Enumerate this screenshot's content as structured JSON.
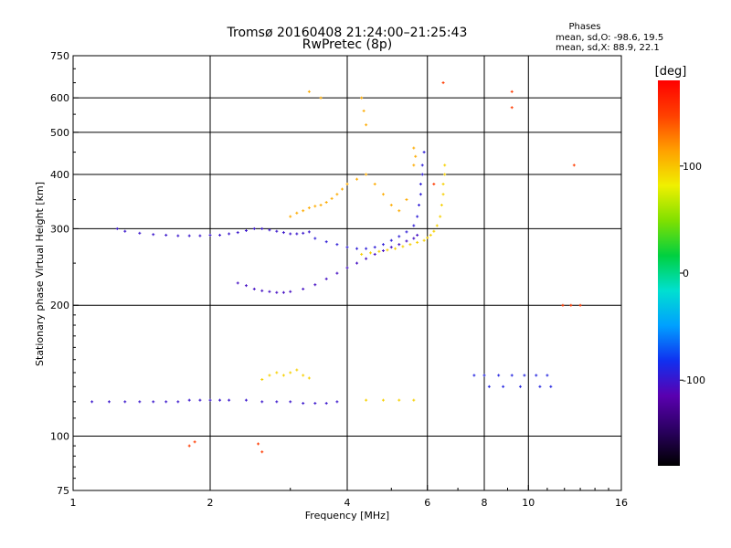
{
  "chart_data": {
    "type": "scatter",
    "title": "Tromsø 20160408 21:24:00–21:25:43",
    "subtitle": "RwPretec (8p)",
    "xlabel": "Frequency [MHz]",
    "ylabel": "Stationary phase Virtual Height [km]",
    "x_scale": "log",
    "y_scale": "log",
    "xlim": [
      1,
      16
    ],
    "ylim": [
      75,
      750
    ],
    "x_ticks": [
      1,
      2,
      4,
      6,
      8,
      10,
      16
    ],
    "y_ticks": [
      75,
      100,
      200,
      300,
      400,
      500,
      600,
      750
    ],
    "grid": true,
    "stats": {
      "heading": "Phases",
      "line_o": "mean, sd,O: -98.6, 19.5",
      "line_x": "mean, sd,X:  88.9, 22.1"
    },
    "colorbar": {
      "label": "[deg]",
      "range": [
        -180,
        180
      ],
      "ticks": [
        -100,
        0,
        100
      ],
      "colors": [
        "#000000",
        "#2a0060",
        "#5a00b0",
        "#1030f0",
        "#00a0ff",
        "#00e0d0",
        "#00d040",
        "#80e000",
        "#f0f000",
        "#ffa000",
        "#ff4000",
        "#ff0000"
      ]
    },
    "point_color_key": "phase_deg",
    "series": [
      {
        "group": "O-low F trace",
        "phase_deg": -100,
        "points": [
          [
            1.25,
            300
          ],
          [
            1.3,
            296
          ],
          [
            1.4,
            293
          ],
          [
            1.5,
            291
          ],
          [
            1.6,
            290
          ],
          [
            1.7,
            289
          ],
          [
            1.8,
            289
          ],
          [
            1.9,
            289
          ],
          [
            2.0,
            290
          ],
          [
            2.1,
            290
          ],
          [
            2.2,
            292
          ],
          [
            2.3,
            294
          ],
          [
            2.4,
            297
          ],
          [
            2.5,
            300
          ],
          [
            2.6,
            300
          ],
          [
            2.7,
            298
          ],
          [
            2.8,
            296
          ],
          [
            2.9,
            294
          ],
          [
            3.0,
            292
          ],
          [
            3.1,
            292
          ],
          [
            3.2,
            293
          ],
          [
            3.3,
            295
          ]
        ]
      },
      {
        "group": "O upper trace",
        "phase_deg": -95,
        "points": [
          [
            3.4,
            285
          ],
          [
            3.6,
            280
          ],
          [
            3.8,
            276
          ],
          [
            4.0,
            272
          ],
          [
            4.2,
            270
          ],
          [
            4.4,
            270
          ],
          [
            4.6,
            272
          ],
          [
            4.8,
            276
          ],
          [
            5.0,
            282
          ],
          [
            5.2,
            288
          ],
          [
            5.4,
            295
          ],
          [
            5.6,
            305
          ],
          [
            5.7,
            320
          ],
          [
            5.75,
            340
          ],
          [
            5.8,
            360
          ],
          [
            5.8,
            380
          ],
          [
            5.85,
            400
          ],
          [
            5.85,
            420
          ],
          [
            5.9,
            450
          ]
        ]
      },
      {
        "group": "O F2 trace",
        "phase_deg": -105,
        "points": [
          [
            2.3,
            225
          ],
          [
            2.4,
            222
          ],
          [
            2.5,
            218
          ],
          [
            2.6,
            216
          ],
          [
            2.7,
            215
          ],
          [
            2.8,
            214
          ],
          [
            2.9,
            214
          ],
          [
            3.0,
            215
          ],
          [
            3.2,
            218
          ],
          [
            3.4,
            223
          ],
          [
            3.6,
            230
          ],
          [
            3.8,
            237
          ],
          [
            4.0,
            244
          ],
          [
            4.2,
            250
          ],
          [
            4.4,
            256
          ],
          [
            4.6,
            262
          ],
          [
            4.8,
            267
          ],
          [
            5.0,
            272
          ],
          [
            5.2,
            276
          ],
          [
            5.4,
            281
          ],
          [
            5.6,
            285
          ],
          [
            5.7,
            290
          ]
        ]
      },
      {
        "group": "X F2 trace",
        "phase_deg": 95,
        "points": [
          [
            4.3,
            262
          ],
          [
            4.5,
            264
          ],
          [
            4.7,
            266
          ],
          [
            4.9,
            268
          ],
          [
            5.1,
            270
          ],
          [
            5.3,
            273
          ],
          [
            5.5,
            276
          ],
          [
            5.7,
            279
          ],
          [
            5.9,
            282
          ],
          [
            6.0,
            286
          ],
          [
            6.1,
            290
          ],
          [
            6.2,
            296
          ],
          [
            6.3,
            305
          ],
          [
            6.4,
            320
          ],
          [
            6.45,
            340
          ],
          [
            6.5,
            360
          ],
          [
            6.5,
            380
          ],
          [
            6.55,
            400
          ],
          [
            6.55,
            420
          ]
        ]
      },
      {
        "group": "X F-layer cloud",
        "phase_deg": 110,
        "points": [
          [
            3.0,
            320
          ],
          [
            3.1,
            326
          ],
          [
            3.2,
            330
          ],
          [
            3.3,
            335
          ],
          [
            3.4,
            338
          ],
          [
            3.5,
            340
          ],
          [
            3.6,
            345
          ],
          [
            3.7,
            352
          ],
          [
            3.8,
            360
          ],
          [
            3.9,
            370
          ],
          [
            4.0,
            380
          ],
          [
            4.2,
            390
          ],
          [
            4.4,
            400
          ],
          [
            4.6,
            380
          ],
          [
            4.8,
            360
          ],
          [
            5.0,
            340
          ],
          [
            5.2,
            330
          ],
          [
            5.4,
            350
          ],
          [
            5.6,
            420
          ],
          [
            5.6,
            460
          ],
          [
            5.65,
            440
          ],
          [
            4.3,
            600
          ],
          [
            4.35,
            560
          ],
          [
            4.4,
            520
          ],
          [
            3.3,
            620
          ],
          [
            3.5,
            600
          ]
        ]
      },
      {
        "group": "O E-region trace",
        "phase_deg": -100,
        "points": [
          [
            1.1,
            120
          ],
          [
            1.2,
            120
          ],
          [
            1.3,
            120
          ],
          [
            1.4,
            120
          ],
          [
            1.5,
            120
          ],
          [
            1.6,
            120
          ],
          [
            1.7,
            120
          ],
          [
            1.8,
            121
          ],
          [
            1.9,
            121
          ],
          [
            2.0,
            121
          ],
          [
            2.1,
            121
          ],
          [
            2.2,
            121
          ],
          [
            2.4,
            121
          ],
          [
            2.6,
            120
          ],
          [
            2.8,
            120
          ],
          [
            3.0,
            120
          ],
          [
            3.2,
            119
          ],
          [
            3.4,
            119
          ],
          [
            3.6,
            119
          ],
          [
            3.8,
            120
          ]
        ]
      },
      {
        "group": "X E-region trace",
        "phase_deg": 95,
        "points": [
          [
            2.6,
            135
          ],
          [
            2.7,
            138
          ],
          [
            2.8,
            140
          ],
          [
            2.9,
            138
          ],
          [
            3.0,
            140
          ],
          [
            3.1,
            142
          ],
          [
            3.2,
            138
          ],
          [
            3.3,
            136
          ],
          [
            4.4,
            121
          ],
          [
            4.8,
            121
          ],
          [
            5.2,
            121
          ],
          [
            5.6,
            121
          ]
        ]
      },
      {
        "group": "Sporadic echoes 8-11 MHz",
        "phase_deg": -90,
        "points": [
          [
            7.6,
            138
          ],
          [
            8.0,
            138
          ],
          [
            8.6,
            138
          ],
          [
            9.2,
            138
          ],
          [
            9.8,
            138
          ],
          [
            10.4,
            138
          ],
          [
            11.0,
            138
          ],
          [
            8.2,
            130
          ],
          [
            8.8,
            130
          ],
          [
            9.6,
            130
          ],
          [
            10.6,
            130
          ],
          [
            11.2,
            130
          ]
        ]
      },
      {
        "group": "Sporadic high echoes",
        "phase_deg": 150,
        "points": [
          [
            9.2,
            620
          ],
          [
            9.2,
            570
          ],
          [
            6.5,
            650
          ],
          [
            6.2,
            380
          ],
          [
            11.9,
            200
          ],
          [
            12.4,
            200
          ],
          [
            13.0,
            200
          ],
          [
            12.6,
            420
          ],
          [
            2.6,
            92
          ],
          [
            1.8,
            95
          ],
          [
            1.85,
            97
          ],
          [
            2.55,
            96
          ]
        ]
      }
    ]
  }
}
